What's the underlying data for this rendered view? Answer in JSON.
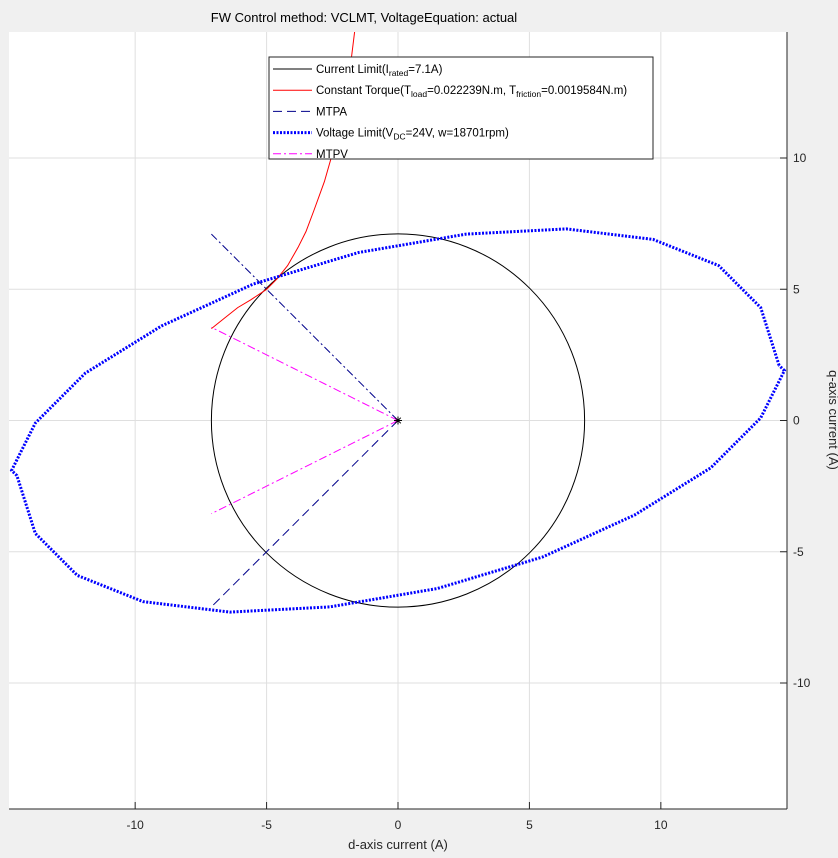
{
  "chart_data": {
    "type": "line",
    "title": "FW Control method: VCLMT, VoltageEquation: actual",
    "xlabel": "d-axis current (A)",
    "ylabel": "q-axis current (A)",
    "xlim": [
      -14.8,
      14.8
    ],
    "ylim": [
      -14.8,
      14.8
    ],
    "x_ticks": [
      -10,
      -5,
      0,
      5,
      10
    ],
    "y_ticks": [
      -10,
      -5,
      0,
      5,
      10
    ],
    "x_tick_labels": [
      "-10",
      "-5",
      "0",
      "5",
      "10"
    ],
    "y_tick_labels": [
      "-10",
      "-5",
      "0",
      "5",
      "10"
    ],
    "y_axis_location": "right",
    "grid": true,
    "legend_placement": "top",
    "background": "#ffffff",
    "legend": [
      {
        "parts": [
          {
            "t": "Current Limit(I"
          },
          {
            "t": "rated",
            "sub": true
          },
          {
            "t": "=7.1A)"
          }
        ],
        "color": "#000000",
        "style": "solid"
      },
      {
        "parts": [
          {
            "t": "Constant Torque(T"
          },
          {
            "t": "load",
            "sub": true
          },
          {
            "t": "=0.022239N.m, T"
          },
          {
            "t": "friction",
            "sub": true
          },
          {
            "t": "=0.0019584N.m)"
          }
        ],
        "color": "#ff0000",
        "style": "solid"
      },
      {
        "parts": [
          {
            "t": "MTPA"
          }
        ],
        "color": "#00008b",
        "style": "dashed"
      },
      {
        "parts": [
          {
            "t": "Voltage Limit(V"
          },
          {
            "t": "DC",
            "sub": true
          },
          {
            "t": "=24V, w=18701rpm)"
          }
        ],
        "color": "#0000ff",
        "style": "dotted"
      },
      {
        "parts": [
          {
            "t": "MTPV"
          }
        ],
        "color": "#ff00ff",
        "style": "dashdot"
      }
    ],
    "series": [
      {
        "kind": "circle",
        "color": "#000000",
        "style": "solid",
        "center": [
          0,
          0
        ],
        "radius": 7.1
      },
      {
        "kind": "hyperbola",
        "color": "#ff0000",
        "style": "solid",
        "x": [
          -7.1,
          -6.6,
          -6.1,
          -5.6,
          -5.0,
          -4.6,
          -4.2,
          -3.8,
          -3.5,
          -3.2,
          -2.8,
          -2.4,
          -2.1,
          -1.85,
          -1.65
        ],
        "y": [
          3.5,
          3.9,
          4.3,
          4.6,
          5.0,
          5.4,
          5.9,
          6.6,
          7.2,
          8.0,
          9.1,
          10.5,
          11.7,
          13.2,
          14.8
        ]
      },
      {
        "kind": "line",
        "color": "#00008b",
        "style": "dashdot",
        "x": [
          0,
          -7.1
        ],
        "y": [
          0,
          7.1
        ]
      },
      {
        "kind": "line",
        "color": "#00008b",
        "style": "dashed",
        "x": [
          0,
          -7.1
        ],
        "y": [
          0,
          -7.1
        ]
      },
      {
        "kind": "ellipse",
        "color": "#0000ff",
        "style": "dotted",
        "center": [
          0,
          0
        ],
        "x": [
          14.5,
          13.8,
          12.2,
          9.7,
          6.4,
          2.6,
          -1.5,
          -5.5,
          -9.0,
          -11.9,
          -13.8,
          -14.7,
          -14.5,
          -13.8,
          -12.2,
          -9.7,
          -6.4,
          -2.6,
          1.5,
          5.5,
          9.0,
          11.9,
          13.8,
          14.7,
          14.5
        ],
        "y": [
          2.1,
          4.3,
          5.9,
          6.9,
          7.3,
          7.1,
          6.4,
          5.2,
          3.6,
          1.8,
          -0.1,
          -1.9,
          -2.1,
          -4.3,
          -5.9,
          -6.9,
          -7.3,
          -7.1,
          -6.4,
          -5.2,
          -3.6,
          -1.8,
          0.1,
          1.9,
          2.1
        ]
      },
      {
        "kind": "line",
        "color": "#ff00ff",
        "style": "dashdot",
        "x": [
          0,
          -7.1
        ],
        "y": [
          0,
          3.55
        ]
      },
      {
        "kind": "line",
        "color": "#ff00ff",
        "style": "dashdot",
        "x": [
          0,
          -7.1
        ],
        "y": [
          0,
          -3.55
        ]
      }
    ],
    "markers": [
      {
        "x": 0,
        "y": 0,
        "symbol": "*",
        "color": "#000000"
      }
    ]
  }
}
